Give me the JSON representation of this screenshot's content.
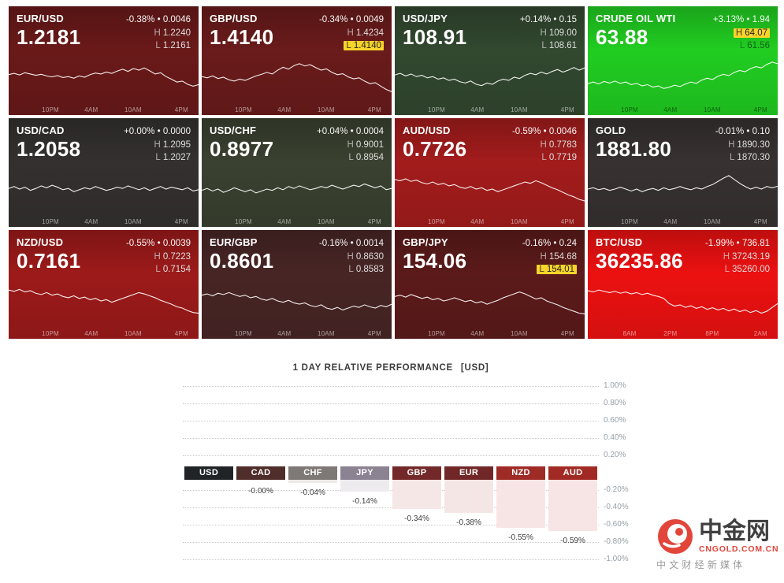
{
  "tiles": [
    {
      "symbol": "EUR/USD",
      "change": "-0.38% • 0.0046",
      "price": "1.2181",
      "high": "1.2240",
      "low": "1.2161",
      "high_hl": false,
      "low_hl": false,
      "bg": "#6a1919",
      "times": [
        "10PM",
        "4AM",
        "10AM",
        "4PM"
      ],
      "spark": [
        56,
        60,
        55,
        62,
        58,
        54,
        57,
        52,
        49,
        53,
        47,
        50,
        45,
        52,
        48,
        56,
        61,
        58,
        64,
        60,
        67,
        73,
        66,
        75,
        70,
        77,
        68,
        58,
        62,
        50,
        42,
        33,
        36,
        26,
        20,
        25
      ]
    },
    {
      "symbol": "GBP/USD",
      "change": "-0.34% • 0.0049",
      "price": "1.4140",
      "high": "1.4234",
      "low": "1.4140",
      "high_hl": false,
      "low_hl": true,
      "bg": "#6a1b1b",
      "times": [
        "10PM",
        "4AM",
        "10AM",
        "4PM"
      ],
      "spark": [
        50,
        46,
        52,
        44,
        48,
        40,
        36,
        42,
        38,
        45,
        52,
        57,
        63,
        58,
        70,
        79,
        73,
        84,
        90,
        83,
        87,
        78,
        70,
        74,
        63,
        56,
        59,
        49,
        43,
        46,
        36,
        28,
        31,
        20,
        10,
        3
      ]
    },
    {
      "symbol": "USD/JPY",
      "change": "+0.14% • 0.15",
      "price": "108.91",
      "high": "109.00",
      "low": "108.61",
      "high_hl": false,
      "low_hl": false,
      "bg": "#32482f",
      "times": [
        "10PM",
        "4AM",
        "10AM",
        "4PM"
      ],
      "spark": [
        55,
        60,
        52,
        58,
        50,
        54,
        46,
        50,
        42,
        46,
        38,
        42,
        34,
        30,
        36,
        26,
        22,
        30,
        26,
        36,
        42,
        38,
        48,
        44,
        54,
        60,
        56,
        64,
        58,
        66,
        72,
        64,
        70,
        78,
        70,
        77
      ]
    },
    {
      "symbol": "CRUDE OIL WTI",
      "change": "+3.13% • 1.94",
      "price": "63.88",
      "high": "64.07",
      "low": "61.56",
      "high_hl": true,
      "low_hl": false,
      "bg": "#21cd21",
      "hl_text": "#14641c",
      "times_color": "rgba(6,70,10,0.75)",
      "times": [
        "10PM",
        "4AM",
        "10AM",
        "4PM"
      ],
      "spark": [
        28,
        33,
        27,
        35,
        30,
        36,
        29,
        33,
        25,
        29,
        21,
        25,
        17,
        21,
        13,
        17,
        23,
        19,
        27,
        33,
        29,
        39,
        45,
        41,
        51,
        57,
        53,
        63,
        69,
        65,
        75,
        81,
        77,
        88,
        95,
        90
      ]
    },
    {
      "symbol": "USD/CAD",
      "change": "+0.00% • 0.0000",
      "price": "1.2058",
      "high": "1.2095",
      "low": "1.2027",
      "high_hl": false,
      "low_hl": false,
      "bg": "#343030",
      "times": [
        "10PM",
        "4AM",
        "10AM",
        "4PM"
      ],
      "spark": [
        50,
        56,
        48,
        54,
        44,
        50,
        58,
        52,
        60,
        54,
        46,
        50,
        40,
        46,
        52,
        48,
        56,
        50,
        44,
        48,
        54,
        50,
        58,
        52,
        46,
        52,
        44,
        50,
        56,
        48,
        54,
        50,
        46,
        52,
        42,
        46
      ]
    },
    {
      "symbol": "USD/CHF",
      "change": "+0.04% • 0.0004",
      "price": "0.8977",
      "high": "0.9001",
      "low": "0.8954",
      "high_hl": false,
      "low_hl": false,
      "bg": "#3a4130",
      "times": [
        "10PM",
        "4AM",
        "10AM",
        "4PM"
      ],
      "spark": [
        44,
        50,
        42,
        48,
        38,
        44,
        52,
        46,
        40,
        46,
        36,
        42,
        48,
        44,
        52,
        46,
        56,
        50,
        58,
        52,
        46,
        50,
        56,
        52,
        60,
        54,
        48,
        54,
        60,
        56,
        64,
        58,
        52,
        58,
        46,
        50
      ]
    },
    {
      "symbol": "AUD/USD",
      "change": "-0.59% • 0.0046",
      "price": "0.7726",
      "high": "0.7783",
      "low": "0.7719",
      "high_hl": false,
      "low_hl": false,
      "bg": "#a31c1c",
      "times": [
        "10PM",
        "4AM",
        "10AM",
        "4PM"
      ],
      "spark": [
        78,
        74,
        80,
        72,
        76,
        68,
        64,
        70,
        62,
        66,
        58,
        62,
        54,
        50,
        56,
        48,
        52,
        44,
        48,
        40,
        46,
        52,
        58,
        64,
        70,
        66,
        74,
        68,
        60,
        52,
        46,
        38,
        30,
        24,
        16,
        11
      ]
    },
    {
      "symbol": "GOLD",
      "change": "-0.01% • 0.10",
      "price": "1881.80",
      "high": "1890.30",
      "low": "1870.30",
      "high_hl": false,
      "low_hl": false,
      "bg": "#373131",
      "times": [
        "10PM",
        "4AM",
        "10AM",
        "4PM"
      ],
      "spark": [
        48,
        52,
        46,
        50,
        44,
        48,
        54,
        48,
        42,
        48,
        40,
        46,
        50,
        44,
        52,
        46,
        50,
        56,
        50,
        46,
        52,
        48,
        56,
        62,
        72,
        82,
        90,
        78,
        66,
        56,
        48,
        54,
        48,
        56,
        52,
        57
      ]
    },
    {
      "symbol": "NZD/USD",
      "change": "-0.55% • 0.0039",
      "price": "0.7161",
      "high": "0.7223",
      "low": "0.7154",
      "high_hl": false,
      "low_hl": false,
      "bg": "#9d1a1a",
      "times": [
        "10PM",
        "4AM",
        "10AM",
        "4PM"
      ],
      "spark": [
        82,
        78,
        84,
        76,
        80,
        72,
        68,
        74,
        66,
        70,
        62,
        58,
        64,
        56,
        60,
        52,
        56,
        48,
        52,
        44,
        50,
        56,
        62,
        68,
        74,
        70,
        64,
        58,
        50,
        44,
        38,
        30,
        26,
        18,
        12,
        10
      ]
    },
    {
      "symbol": "EUR/GBP",
      "change": "-0.16% • 0.0014",
      "price": "0.8601",
      "high": "0.8630",
      "low": "0.8583",
      "high_hl": false,
      "low_hl": false,
      "bg": "#482525",
      "times": [
        "10PM",
        "4AM",
        "10AM",
        "4PM"
      ],
      "spark": [
        66,
        70,
        64,
        72,
        68,
        74,
        68,
        62,
        66,
        58,
        62,
        54,
        50,
        56,
        48,
        44,
        50,
        42,
        38,
        42,
        34,
        30,
        36,
        26,
        22,
        28,
        20,
        26,
        32,
        28,
        36,
        30,
        26,
        34,
        30,
        38
      ]
    },
    {
      "symbol": "GBP/JPY",
      "change": "-0.16% • 0.24",
      "price": "154.06",
      "high": "154.68",
      "low": "154.01",
      "high_hl": false,
      "low_hl": true,
      "bg": "#5c1a1a",
      "times": [
        "10PM",
        "4AM",
        "10AM",
        "4PM"
      ],
      "spark": [
        62,
        66,
        60,
        68,
        62,
        56,
        60,
        52,
        56,
        48,
        52,
        58,
        52,
        46,
        50,
        42,
        46,
        38,
        44,
        50,
        58,
        64,
        70,
        76,
        70,
        62,
        54,
        58,
        48,
        42,
        36,
        28,
        22,
        16,
        10,
        8
      ]
    },
    {
      "symbol": "BTC/USD",
      "change": "-1.99% • 736.81",
      "price": "36235.86",
      "high": "37243.19",
      "low": "35260.00",
      "high_hl": false,
      "low_hl": false,
      "bg": "#ec1111",
      "times": [
        "8AM",
        "2PM",
        "8PM",
        "2AM"
      ],
      "spark": [
        80,
        76,
        82,
        78,
        74,
        78,
        72,
        76,
        70,
        74,
        68,
        72,
        66,
        62,
        56,
        40,
        32,
        36,
        28,
        33,
        25,
        30,
        22,
        27,
        20,
        25,
        17,
        23,
        15,
        20,
        12,
        18,
        10,
        16,
        28,
        40
      ]
    }
  ],
  "chart_data": {
    "type": "bar",
    "title": "1 DAY RELATIVE PERFORMANCE",
    "unit": "[USD]",
    "categories": [
      "USD",
      "CAD",
      "CHF",
      "JPY",
      "GBP",
      "EUR",
      "NZD",
      "AUD"
    ],
    "values": [
      0.0,
      -0.0,
      -0.04,
      -0.14,
      -0.34,
      -0.38,
      -0.55,
      -0.59
    ],
    "value_labels": [
      "",
      "-0.00%",
      "-0.04%",
      "-0.14%",
      "-0.34%",
      "-0.38%",
      "-0.55%",
      "-0.59%"
    ],
    "header_colors": [
      "#202427",
      "#4f2d2a",
      "#7e7977",
      "#8b8292",
      "#73292a",
      "#712727",
      "#9f2b26",
      "#a12b24"
    ],
    "bar_colors": [
      "#eeeeee",
      "#f2eaea",
      "#edebe9",
      "#eeebee",
      "#f6e7e7",
      "#f5e6e6",
      "#f7e5e5",
      "#f7e5e5"
    ],
    "ylim": [
      -1.0,
      1.0
    ],
    "grid": "dotted",
    "legend": "none",
    "ylabel_side": "right",
    "yticks": [
      {
        "v": 1.0,
        "label": "1.00%"
      },
      {
        "v": 0.8,
        "label": "0.80%"
      },
      {
        "v": 0.6,
        "label": "0.60%"
      },
      {
        "v": 0.4,
        "label": "0.40%"
      },
      {
        "v": 0.2,
        "label": "0.20%"
      },
      {
        "v": -0.2,
        "label": "-0.20%"
      },
      {
        "v": -0.4,
        "label": "-0.40%"
      },
      {
        "v": -0.6,
        "label": "-0.60%"
      },
      {
        "v": -0.8,
        "label": "-0.80%"
      },
      {
        "v": -1.0,
        "label": "-1.00%"
      }
    ]
  },
  "logo": {
    "name": "中金网",
    "url": "CNGOLD.COM.CN",
    "tagline": "中文财经新媒体"
  }
}
